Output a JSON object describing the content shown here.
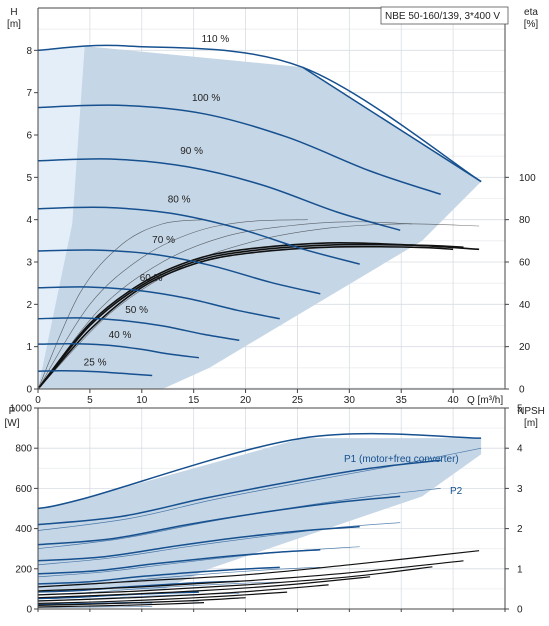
{
  "chart_data": [
    {
      "type": "line",
      "title": "NBE 50-160/139, 3*400 V",
      "xlabel": "Q [m³/h]",
      "x_ticks": [
        "0",
        "5",
        "10",
        "15",
        "20",
        "25",
        "30",
        "35",
        "40"
      ],
      "xlim": [
        0,
        45
      ],
      "ylabel_left": [
        "H",
        "[m]"
      ],
      "y_left_ticks": [
        "0",
        "1",
        "2",
        "3",
        "4",
        "5",
        "6",
        "7",
        "8"
      ],
      "ylim_left": [
        0,
        9
      ],
      "ylabel_right": [
        "eta",
        "[%]"
      ],
      "y_right_ticks": [
        "0",
        "20",
        "40",
        "60",
        "80",
        "100"
      ],
      "ylim_right": [
        0,
        180
      ],
      "grid": true,
      "colors": {
        "curve": "#16508f",
        "region": "#c5d6e6",
        "region_light": "#e4eef8",
        "eta": "#111111"
      },
      "operating_region": [
        [
          0,
          0
        ],
        [
          0,
          8
        ],
        [
          4.5,
          8.1
        ],
        [
          25.5,
          7.6
        ],
        [
          42.7,
          4.9
        ],
        [
          37,
          3.5
        ],
        [
          16.5,
          0.5
        ],
        [
          12,
          0
        ],
        [
          0,
          0
        ]
      ],
      "light_region": [
        [
          0,
          0
        ],
        [
          0,
          8
        ],
        [
          4.5,
          8.1
        ],
        [
          3.3,
          3.9
        ],
        [
          0,
          0
        ]
      ],
      "speed_curves": [
        {
          "label": "110 %",
          "label_at": [
            17.1,
            8.2
          ],
          "x": [
            0,
            8.8,
            25.5,
            42.7
          ],
          "h": [
            8.0,
            8.1,
            7.6,
            4.9
          ]
        },
        {
          "label": "100 %",
          "label_at": [
            16.2,
            6.8
          ],
          "x": [
            0,
            8,
            16,
            24,
            32,
            38.8
          ],
          "h": [
            6.65,
            6.7,
            6.5,
            5.95,
            5.15,
            4.6
          ]
        },
        {
          "label": "90 %",
          "label_at": [
            14.8,
            5.55
          ],
          "x": [
            0,
            7.2,
            14.4,
            21.6,
            28.8,
            34.9
          ],
          "h": [
            5.39,
            5.43,
            5.25,
            4.82,
            4.18,
            3.75
          ]
        },
        {
          "label": "80 %",
          "label_at": [
            13.6,
            4.4
          ],
          "x": [
            0,
            6.4,
            12.8,
            19.2,
            25.6,
            31
          ],
          "h": [
            4.26,
            4.29,
            4.15,
            3.8,
            3.3,
            2.95
          ]
        },
        {
          "label": "70 %",
          "label_at": [
            12.1,
            3.45
          ],
          "x": [
            0,
            5.6,
            11.2,
            16.8,
            22.4,
            27.2
          ],
          "h": [
            3.26,
            3.28,
            3.18,
            2.91,
            2.52,
            2.25
          ]
        },
        {
          "label": "60 %",
          "label_at": [
            10.9,
            2.55
          ],
          "x": [
            0,
            4.8,
            9.6,
            14.4,
            19.2,
            23.3
          ],
          "h": [
            2.39,
            2.41,
            2.33,
            2.14,
            1.86,
            1.66
          ]
        },
        {
          "label": "50 %",
          "label_at": [
            9.5,
            1.8
          ],
          "x": [
            0,
            4,
            8,
            12,
            16,
            19.4
          ],
          "h": [
            1.66,
            1.68,
            1.62,
            1.49,
            1.29,
            1.15
          ]
        },
        {
          "label": "40 %",
          "label_at": [
            7.9,
            1.2
          ],
          "x": [
            0,
            3.2,
            6.4,
            9.6,
            12.8,
            15.5
          ],
          "h": [
            1.06,
            1.07,
            1.04,
            0.95,
            0.82,
            0.74
          ]
        },
        {
          "label": "25 %",
          "label_at": [
            5.5,
            0.55
          ],
          "x": [
            0,
            2.5,
            5.5,
            8,
            11
          ],
          "h": [
            0.42,
            0.43,
            0.41,
            0.37,
            0.32
          ]
        }
      ],
      "efficiency_curves": [
        {
          "x": [
            0,
            4,
            8,
            12,
            16
          ],
          "eta": [
            0,
            45,
            68,
            78,
            80
          ]
        },
        {
          "x": [
            0,
            5,
            10,
            15,
            20,
            26
          ],
          "eta": [
            0,
            40,
            62,
            74,
            79,
            80
          ]
        },
        {
          "x": [
            0,
            6,
            12,
            18,
            24,
            30,
            36
          ],
          "eta": [
            0,
            38,
            60,
            72,
            77,
            79,
            78
          ]
        },
        {
          "x": [
            0,
            7,
            14,
            21,
            28,
            35,
            42.5
          ],
          "eta": [
            0,
            36,
            58,
            70,
            76,
            78,
            77
          ]
        },
        {
          "x": [
            0,
            5,
            10,
            15,
            20,
            28,
            36,
            40
          ],
          "eta": [
            0,
            28,
            48,
            59,
            64,
            67,
            67,
            66
          ]
        },
        {
          "x": [
            0,
            5,
            10,
            15,
            20,
            28,
            36,
            41
          ],
          "eta": [
            0,
            30,
            49,
            60,
            65,
            68,
            68,
            67
          ]
        },
        {
          "x": [
            0,
            5,
            10,
            15,
            20,
            28,
            36,
            42.5
          ],
          "eta": [
            0,
            31,
            50,
            61,
            66,
            69,
            68,
            66
          ]
        }
      ]
    },
    {
      "type": "line",
      "xlim": [
        0,
        45
      ],
      "ylabel_left": [
        "P",
        "[W]"
      ],
      "y_left_ticks": [
        "0",
        "200",
        "400",
        "600",
        "800",
        "1000"
      ],
      "ylim_left": [
        0,
        1000
      ],
      "ylabel_right": [
        "NPSH",
        "[m]"
      ],
      "y_right_ticks": [
        "0",
        "1",
        "2",
        "3",
        "4",
        "5"
      ],
      "ylim_right": [
        0,
        5
      ],
      "grid": true,
      "series_labels": {
        "p1": "P1 (motor+freq converter)",
        "p2": "P2"
      },
      "p_region": [
        [
          0,
          95
        ],
        [
          0,
          500
        ],
        [
          4.5,
          550
        ],
        [
          25.5,
          850
        ],
        [
          42.7,
          850
        ],
        [
          42.7,
          770
        ],
        [
          37,
          560
        ],
        [
          16.5,
          200
        ],
        [
          12,
          95
        ],
        [
          0,
          95
        ]
      ],
      "p1_curves": [
        {
          "x": [
            0,
            4.5,
            25.5,
            42.7
          ],
          "p": [
            500,
            550,
            850,
            850
          ]
        },
        {
          "x": [
            0,
            8,
            16,
            24,
            32,
            38.8
          ],
          "p": [
            420,
            460,
            550,
            630,
            700,
            740
          ]
        },
        {
          "x": [
            0,
            7.2,
            14.4,
            21.6,
            28.8,
            34.9
          ],
          "p": [
            320,
            350,
            420,
            480,
            530,
            560
          ]
        },
        {
          "x": [
            0,
            6.4,
            12.8,
            19.2,
            25.6,
            31
          ],
          "p": [
            240,
            260,
            310,
            355,
            390,
            410
          ]
        },
        {
          "x": [
            0,
            5.6,
            11.2,
            16.8,
            22.4,
            27.2
          ],
          "p": [
            175,
            190,
            225,
            255,
            280,
            295
          ]
        },
        {
          "x": [
            0,
            4.8,
            9.6,
            14.4,
            19.2,
            23.3
          ],
          "p": [
            125,
            135,
            160,
            180,
            197,
            207
          ]
        },
        {
          "x": [
            0,
            4,
            8,
            12,
            16,
            19.4
          ],
          "p": [
            85,
            92,
            108,
            121,
            132,
            138
          ]
        },
        {
          "x": [
            0,
            3.2,
            6.4,
            9.6,
            12.8,
            15.5
          ],
          "p": [
            52,
            57,
            66,
            74,
            80,
            84
          ]
        },
        {
          "x": [
            0,
            2.5,
            5.5,
            8,
            11
          ],
          "p": [
            22,
            24,
            27,
            30,
            32
          ]
        }
      ],
      "p2_curves": [
        {
          "x": [
            0,
            8.8,
            17,
            25.5,
            34,
            42.7
          ],
          "p": [
            390,
            450,
            545,
            630,
            710,
            800
          ]
        },
        {
          "x": [
            0,
            8,
            16,
            24,
            32,
            38.8
          ],
          "p": [
            300,
            350,
            430,
            500,
            560,
            600
          ]
        },
        {
          "x": [
            0,
            7.2,
            14.4,
            21.6,
            28.8,
            34.9
          ],
          "p": [
            220,
            255,
            310,
            360,
            405,
            430
          ]
        },
        {
          "x": [
            0,
            6.4,
            12.8,
            19.2,
            25.6,
            31
          ],
          "p": [
            160,
            185,
            225,
            262,
            292,
            310
          ]
        },
        {
          "x": [
            0,
            5.6,
            11.2,
            16.8,
            22.4,
            27.2
          ],
          "p": [
            110,
            125,
            152,
            176,
            196,
            208
          ]
        },
        {
          "x": [
            0,
            4.8,
            9.6,
            14.4,
            19.2,
            23.3
          ],
          "p": [
            72,
            82,
            100,
            115,
            127,
            134
          ]
        },
        {
          "x": [
            0,
            4,
            8,
            12,
            16,
            19.4
          ],
          "p": [
            42,
            48,
            58,
            67,
            74,
            78
          ]
        },
        {
          "x": [
            0,
            3.2,
            6.4,
            9.6,
            12.8,
            15.5
          ],
          "p": [
            22,
            25,
            30,
            34,
            38,
            40
          ]
        },
        {
          "x": [
            0,
            2.5,
            5.5,
            8,
            11
          ],
          "p": [
            8,
            9,
            10,
            11,
            12
          ]
        }
      ],
      "npsh_curves": [
        {
          "x": [
            0,
            10,
            20,
            30,
            42.5
          ],
          "npsh": [
            0.55,
            0.7,
            0.85,
            1.1,
            1.45
          ]
        },
        {
          "x": [
            0,
            10,
            20,
            30,
            41
          ],
          "npsh": [
            0.45,
            0.55,
            0.7,
            0.9,
            1.2
          ]
        },
        {
          "x": [
            0,
            10,
            20,
            30,
            38
          ],
          "npsh": [
            0.35,
            0.45,
            0.6,
            0.8,
            1.05
          ]
        },
        {
          "x": [
            0,
            8,
            16,
            24,
            32
          ],
          "npsh": [
            0.28,
            0.36,
            0.46,
            0.6,
            0.8
          ]
        },
        {
          "x": [
            0,
            7,
            14,
            21,
            28
          ],
          "npsh": [
            0.2,
            0.26,
            0.34,
            0.45,
            0.6
          ]
        },
        {
          "x": [
            0,
            6,
            12,
            18,
            24
          ],
          "npsh": [
            0.14,
            0.18,
            0.24,
            0.32,
            0.42
          ]
        },
        {
          "x": [
            0,
            5,
            10,
            15,
            20
          ],
          "npsh": [
            0.09,
            0.12,
            0.16,
            0.21,
            0.28
          ]
        },
        {
          "x": [
            0,
            4,
            8,
            12,
            16
          ],
          "npsh": [
            0.05,
            0.07,
            0.09,
            0.12,
            0.16
          ]
        }
      ]
    }
  ]
}
